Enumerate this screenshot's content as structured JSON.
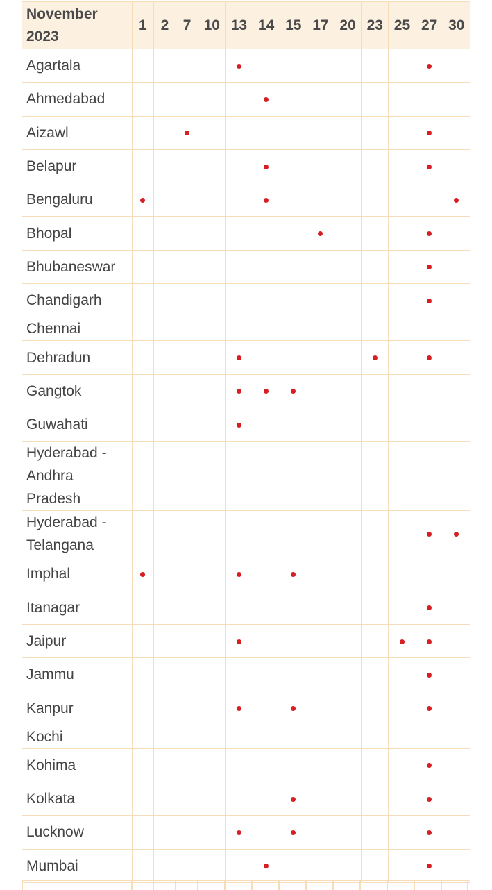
{
  "table": {
    "month_label": "November\n2023",
    "days": [
      "1",
      "2",
      "7",
      "10",
      "13",
      "14",
      "15",
      "17",
      "20",
      "23",
      "25",
      "27",
      "30"
    ],
    "marker_color": "#d71e22",
    "rows": [
      {
        "city": "Agartala",
        "holidays": [
          "13",
          "27"
        ]
      },
      {
        "city": "Ahmedabad",
        "holidays": [
          "14"
        ]
      },
      {
        "city": "Aizawl",
        "holidays": [
          "7",
          "27"
        ]
      },
      {
        "city": "Belapur",
        "holidays": [
          "14",
          "27"
        ]
      },
      {
        "city": "Bengaluru",
        "holidays": [
          "1",
          "14",
          "30"
        ]
      },
      {
        "city": "Bhopal",
        "holidays": [
          "17",
          "27"
        ]
      },
      {
        "city": "Bhubaneswar",
        "holidays": [
          "27"
        ]
      },
      {
        "city": "Chandigarh",
        "holidays": [
          "27"
        ]
      },
      {
        "city": "Chennai",
        "holidays": []
      },
      {
        "city": "Dehradun",
        "holidays": [
          "13",
          "23",
          "27"
        ]
      },
      {
        "city": "Gangtok",
        "holidays": [
          "13",
          "14",
          "15"
        ]
      },
      {
        "city": "Guwahati",
        "holidays": [
          "13"
        ]
      },
      {
        "city": "Hyderabad - Andhra Pradesh",
        "holidays": []
      },
      {
        "city": "Hyderabad - Telangana",
        "holidays": [
          "27",
          "30"
        ]
      },
      {
        "city": "Imphal",
        "holidays": [
          "1",
          "13",
          "15"
        ]
      },
      {
        "city": "Itanagar",
        "holidays": [
          "27"
        ]
      },
      {
        "city": "Jaipur",
        "holidays": [
          "13",
          "25",
          "27"
        ]
      },
      {
        "city": "Jammu",
        "holidays": [
          "27"
        ]
      },
      {
        "city": "Kanpur",
        "holidays": [
          "13",
          "15",
          "27"
        ]
      },
      {
        "city": "Kochi",
        "holidays": []
      },
      {
        "city": "Kohima",
        "holidays": [
          "27"
        ]
      },
      {
        "city": "Kolkata",
        "holidays": [
          "15",
          "27"
        ]
      },
      {
        "city": "Lucknow",
        "holidays": [
          "13",
          "15",
          "27"
        ]
      },
      {
        "city": "Mumbai",
        "holidays": [
          "14",
          "27"
        ]
      }
    ]
  }
}
